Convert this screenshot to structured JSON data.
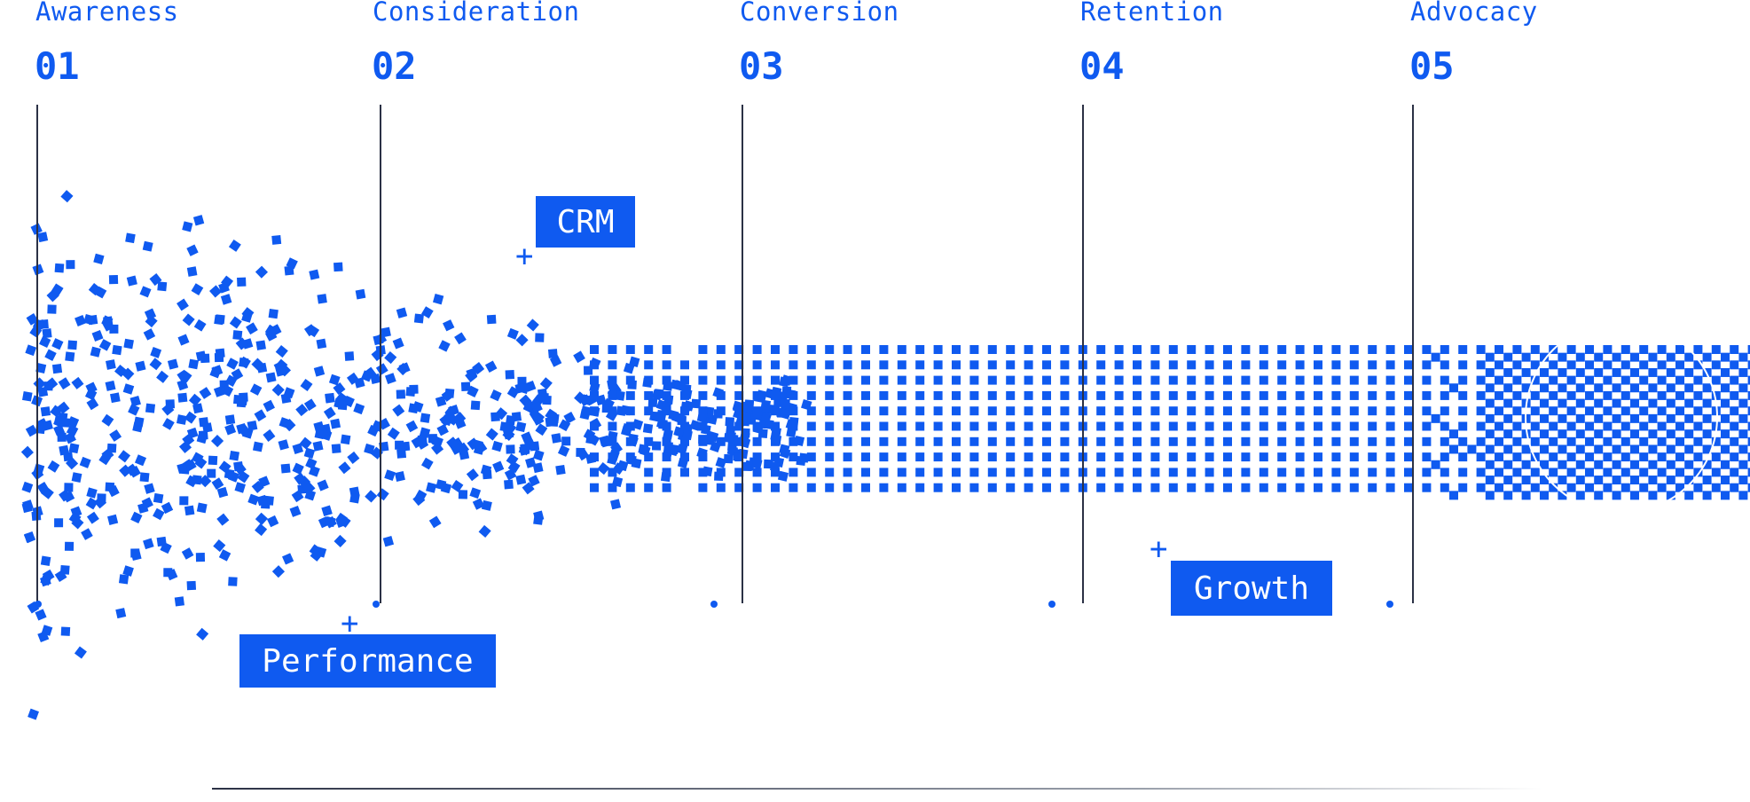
{
  "stages": [
    {
      "title": "Awareness",
      "number": "01"
    },
    {
      "title": "Consideration",
      "number": "02"
    },
    {
      "title": "Conversion",
      "number": "03"
    },
    {
      "title": "Retention",
      "number": "04"
    },
    {
      "title": "Advocacy",
      "number": "05"
    }
  ],
  "tags": {
    "crm": "CRM",
    "performance": "Performance",
    "growth": "Growth"
  },
  "colors": {
    "accent": "#0f5af0",
    "line": "#2b3145"
  }
}
